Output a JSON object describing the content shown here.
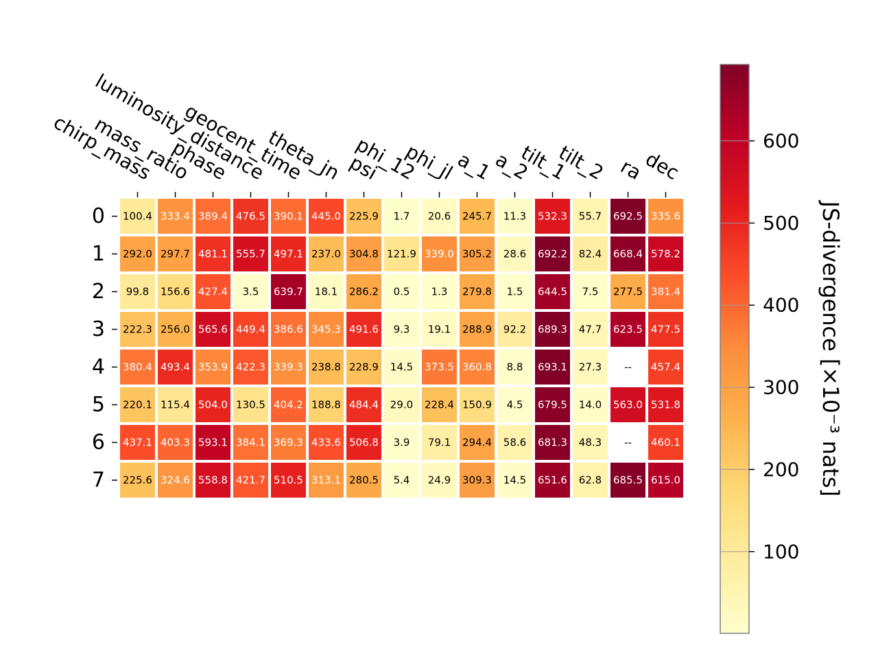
{
  "chart_data": {
    "type": "heatmap",
    "title": "",
    "columns": [
      "chirp_mass",
      "mass_ratio",
      "phase",
      "luminosity_distance",
      "geocent_time",
      "theta_jn",
      "psi",
      "phi_12",
      "phi_jl",
      "a_1",
      "a_2",
      "tilt_1",
      "tilt_2",
      "ra",
      "dec"
    ],
    "rows": [
      "0",
      "1",
      "2",
      "3",
      "4",
      "5",
      "6",
      "7"
    ],
    "values": [
      [
        100.4,
        333.4,
        389.4,
        476.5,
        390.1,
        445.0,
        225.9,
        1.7,
        20.6,
        245.7,
        11.3,
        532.3,
        55.7,
        692.5,
        335.6
      ],
      [
        292.0,
        297.7,
        481.1,
        555.7,
        497.1,
        237.0,
        304.8,
        121.9,
        339.0,
        305.2,
        28.6,
        692.2,
        82.4,
        668.4,
        578.2
      ],
      [
        99.8,
        156.6,
        427.4,
        3.5,
        639.7,
        18.1,
        286.2,
        0.5,
        1.3,
        279.8,
        1.5,
        644.5,
        7.5,
        277.5,
        381.4
      ],
      [
        222.3,
        256.0,
        565.6,
        449.4,
        386.6,
        345.3,
        491.6,
        9.3,
        19.1,
        288.9,
        92.2,
        689.3,
        47.7,
        623.5,
        477.5
      ],
      [
        380.4,
        493.4,
        353.9,
        422.3,
        339.3,
        238.8,
        228.9,
        14.5,
        373.5,
        360.8,
        8.8,
        693.1,
        27.3,
        null,
        457.4
      ],
      [
        220.1,
        115.4,
        504.0,
        130.5,
        404.2,
        188.8,
        484.4,
        29.0,
        228.4,
        150.9,
        4.5,
        679.5,
        14.0,
        563.0,
        531.8
      ],
      [
        437.1,
        403.3,
        593.1,
        384.1,
        369.3,
        433.6,
        506.8,
        3.9,
        79.1,
        294.4,
        58.6,
        681.3,
        48.3,
        null,
        460.1
      ],
      [
        225.6,
        324.6,
        558.8,
        421.7,
        510.5,
        313.1,
        280.5,
        5.4,
        24.9,
        309.3,
        14.5,
        651.6,
        62.8,
        685.5,
        615.0
      ]
    ],
    "missing_label": "--",
    "colorbar": {
      "label": "JS-divergence [×10⁻³ nats]",
      "colormap": "YlOrRd",
      "range": [
        0.5,
        693.1
      ],
      "ticks": [
        100,
        200,
        300,
        400,
        500,
        600
      ]
    }
  }
}
